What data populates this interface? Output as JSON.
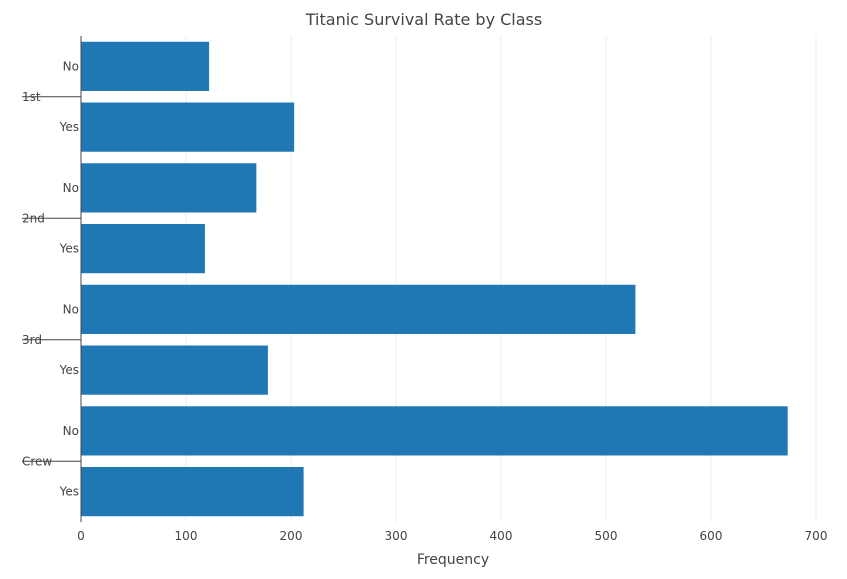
{
  "chart_data": {
    "type": "bar",
    "orientation": "horizontal",
    "title": "Titanic Survival Rate by Class",
    "xlabel": "Frequency",
    "ylabel": "",
    "xlim": [
      0,
      700
    ],
    "xticks": [
      0,
      100,
      200,
      300,
      400,
      500,
      600,
      700
    ],
    "grid": "vertical",
    "bar_color": "#1f77b4",
    "groups": [
      {
        "label": "1st",
        "bars": [
          {
            "label": "No",
            "value": 122
          },
          {
            "label": "Yes",
            "value": 203
          }
        ]
      },
      {
        "label": "2nd",
        "bars": [
          {
            "label": "No",
            "value": 167
          },
          {
            "label": "Yes",
            "value": 118
          }
        ]
      },
      {
        "label": "3rd",
        "bars": [
          {
            "label": "No",
            "value": 528
          },
          {
            "label": "Yes",
            "value": 178
          }
        ]
      },
      {
        "label": "Crew",
        "bars": [
          {
            "label": "No",
            "value": 673
          },
          {
            "label": "Yes",
            "value": 212
          }
        ]
      }
    ]
  }
}
